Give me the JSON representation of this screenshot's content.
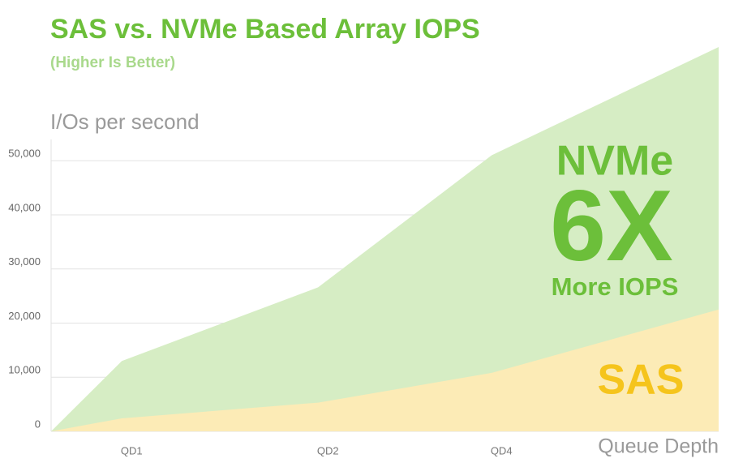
{
  "chart_data": {
    "type": "area",
    "title": "SAS vs. NVMe Based Array IOPS",
    "subtitle": "(Higher Is Better)",
    "y_label": "I/Os per second",
    "x_label": "Queue Depth",
    "categories": [
      null,
      "QD1",
      "QD2",
      "QD4",
      null
    ],
    "series": [
      {
        "color": "#d6edc4",
        "values": [
          0,
          13000,
          26600,
          51000,
          71000
        ]
      },
      {
        "color": "#fcebb6",
        "values": [
          0,
          2400,
          5300,
          10800,
          22500
        ]
      }
    ],
    "ylim": [
      0,
      71000
    ],
    "yticks": [
      0,
      {
        "value": 10000,
        "label": "10,000"
      },
      {
        "value": 20000,
        "label": "20,000"
      },
      {
        "value": 30000,
        "label": "30,000"
      },
      {
        "value": 40000,
        "label": "40,000"
      },
      {
        "value": 50000,
        "label": "50,000"
      }
    ],
    "grid": true,
    "annotations": [
      "NVMe",
      "6X",
      "More IOPS",
      "SAS"
    ]
  }
}
